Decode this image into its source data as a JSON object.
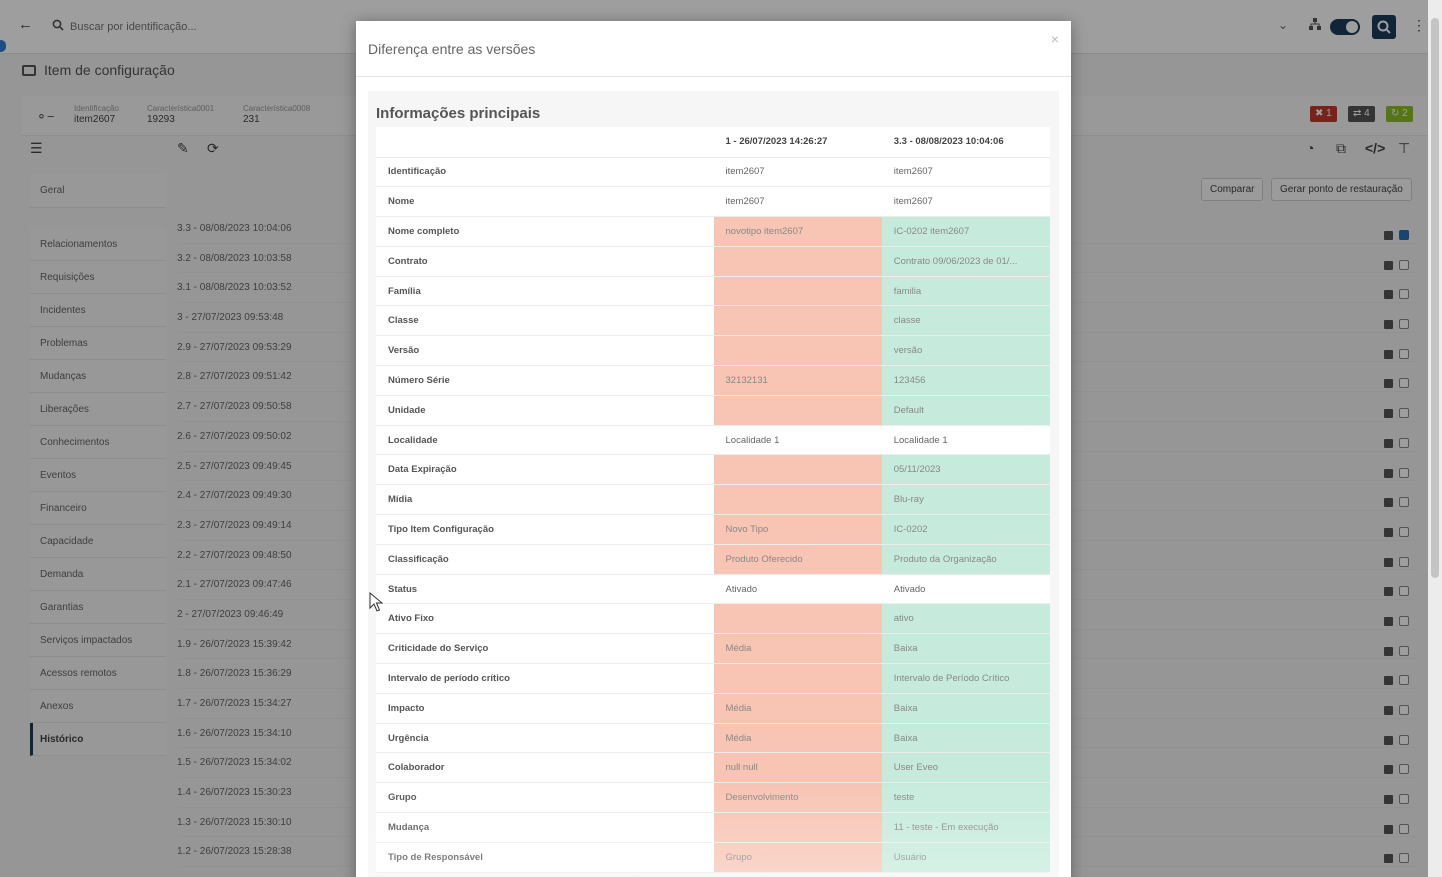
{
  "header": {
    "search_placeholder": "Buscar por identificação..."
  },
  "page": {
    "title": "Item de configuração"
  },
  "infobar": {
    "fields": [
      {
        "label": "Identificação",
        "value": "item2607"
      },
      {
        "label": "Característica0001",
        "value": "19293"
      },
      {
        "label": "Característica0008",
        "value": "231"
      }
    ],
    "badges": [
      {
        "text": "1",
        "color": "#c0392b"
      },
      {
        "text": "4",
        "color": "#555555"
      },
      {
        "text": "2",
        "color": "#8bbd2c"
      }
    ]
  },
  "buttons": {
    "compare": "Comparar",
    "restore_point": "Gerar ponto de restauração"
  },
  "sidebar": {
    "items": [
      {
        "label": "Geral"
      },
      {
        "label": "Relacionamentos"
      },
      {
        "label": "Requisições"
      },
      {
        "label": "Incidentes"
      },
      {
        "label": "Problemas"
      },
      {
        "label": "Mudanças"
      },
      {
        "label": "Liberações"
      },
      {
        "label": "Conhecimentos"
      },
      {
        "label": "Eventos"
      },
      {
        "label": "Financeiro"
      },
      {
        "label": "Capacidade"
      },
      {
        "label": "Demanda"
      },
      {
        "label": "Garantias"
      },
      {
        "label": "Serviços impactados"
      },
      {
        "label": "Acessos remotos"
      },
      {
        "label": "Anexos"
      },
      {
        "label": "Histórico"
      }
    ]
  },
  "history": [
    {
      "label": "3.3 - 08/08/2023 10:04:06",
      "checked": true
    },
    {
      "label": "3.2 - 08/08/2023 10:03:58",
      "checked": false
    },
    {
      "label": "3.1 - 08/08/2023 10:03:52",
      "checked": false
    },
    {
      "label": "3 - 27/07/2023 09:53:48",
      "checked": false
    },
    {
      "label": "2.9 - 27/07/2023 09:53:29",
      "checked": false
    },
    {
      "label": "2.8 - 27/07/2023 09:51:42",
      "checked": false
    },
    {
      "label": "2.7 - 27/07/2023 09:50:58",
      "checked": false
    },
    {
      "label": "2.6 - 27/07/2023 09:50:02",
      "checked": false
    },
    {
      "label": "2.5 - 27/07/2023 09:49:45",
      "checked": false
    },
    {
      "label": "2.4 - 27/07/2023 09:49:30",
      "checked": false
    },
    {
      "label": "2.3 - 27/07/2023 09:49:14",
      "checked": false
    },
    {
      "label": "2.2 - 27/07/2023 09:48:50",
      "checked": false
    },
    {
      "label": "2.1 - 27/07/2023 09:47:46",
      "checked": false
    },
    {
      "label": "2 - 27/07/2023 09:46:49",
      "checked": false
    },
    {
      "label": "1.9 - 26/07/2023 15:39:42",
      "checked": false
    },
    {
      "label": "1.8 - 26/07/2023 15:36:29",
      "checked": false
    },
    {
      "label": "1.7 - 26/07/2023 15:34:27",
      "checked": false
    },
    {
      "label": "1.6 - 26/07/2023 15:34:10",
      "checked": false
    },
    {
      "label": "1.5 - 26/07/2023 15:34:02",
      "checked": false
    },
    {
      "label": "1.4 - 26/07/2023 15:30:23",
      "checked": false
    },
    {
      "label": "1.3 - 26/07/2023 15:30:10",
      "checked": false
    },
    {
      "label": "1.2 - 26/07/2023 15:28:38",
      "checked": false
    }
  ],
  "modal": {
    "title": "Diferença entre as versões",
    "close": "×",
    "section_title": "Informações principais",
    "col_a": "1 - 26/07/2023 14:26:27",
    "col_b": "3.3 - 08/08/2023 10:04:06",
    "rows": [
      {
        "field": "Identificação",
        "a": "item2607",
        "b": "item2607",
        "diff": false
      },
      {
        "field": "Nome",
        "a": "item2607",
        "b": "item2607",
        "diff": false
      },
      {
        "field": "Nome completo",
        "a": "novotipo item2607",
        "b": "IC-0202 item2607",
        "diff": true
      },
      {
        "field": "Contrato",
        "a": "",
        "b": "Contrato 09/06/2023 de 01/...",
        "diff": true
      },
      {
        "field": "Família",
        "a": "",
        "b": "familia",
        "diff": true
      },
      {
        "field": "Classe",
        "a": "",
        "b": "classe",
        "diff": true
      },
      {
        "field": "Versão",
        "a": "",
        "b": "versão",
        "diff": true
      },
      {
        "field": "Número Série",
        "a": "32132131",
        "b": "123456",
        "diff": true
      },
      {
        "field": "Unidade",
        "a": "",
        "b": "Default",
        "diff": true
      },
      {
        "field": "Localidade",
        "a": "Localidade 1",
        "b": "Localidade 1",
        "diff": false
      },
      {
        "field": "Data Expiração",
        "a": "",
        "b": "05/11/2023",
        "diff": true
      },
      {
        "field": "Mídia",
        "a": "",
        "b": "Blu-ray",
        "diff": true
      },
      {
        "field": "Tipo Item Configuração",
        "a": "Novo Tipo",
        "b": "IC-0202",
        "diff": true
      },
      {
        "field": "Classificação",
        "a": "Produto Oferecido",
        "b": "Produto da Organização",
        "diff": true
      },
      {
        "field": "Status",
        "a": "Ativado",
        "b": "Ativado",
        "diff": false
      },
      {
        "field": "Ativo Fixo",
        "a": "",
        "b": "ativo",
        "diff": true
      },
      {
        "field": "Criticidade do Serviço",
        "a": "Média",
        "b": "Baixa",
        "diff": true
      },
      {
        "field": "Intervalo de período crítico",
        "a": "",
        "b": "Intervalo de Período Crítico",
        "diff": true
      },
      {
        "field": "Impacto",
        "a": "Média",
        "b": "Baixa",
        "diff": true
      },
      {
        "field": "Urgência",
        "a": "Média",
        "b": "Baixa",
        "diff": true
      },
      {
        "field": "Colaborador",
        "a": "null null",
        "b": "User Eveo",
        "diff": true
      },
      {
        "field": "Grupo",
        "a": "Desenvolvimento",
        "b": "teste",
        "diff": true
      },
      {
        "field": "Mudança",
        "a": "",
        "b": "11 - teste - Em execução",
        "diff": true
      },
      {
        "field": "Tipo de Responsável",
        "a": "Grupo",
        "b": "Usuário",
        "diff": true
      }
    ]
  },
  "icons": {
    "back": "arrow-left-icon",
    "search": "search-icon",
    "key": "key-icon",
    "menu": "hamburger-menu-icon",
    "edit": "edit-icon",
    "refresh": "refresh-icon",
    "pie": "pie-chart-icon",
    "copy": "copy-icon",
    "code": "code-icon",
    "hierarchy": "hierarchy-icon"
  }
}
